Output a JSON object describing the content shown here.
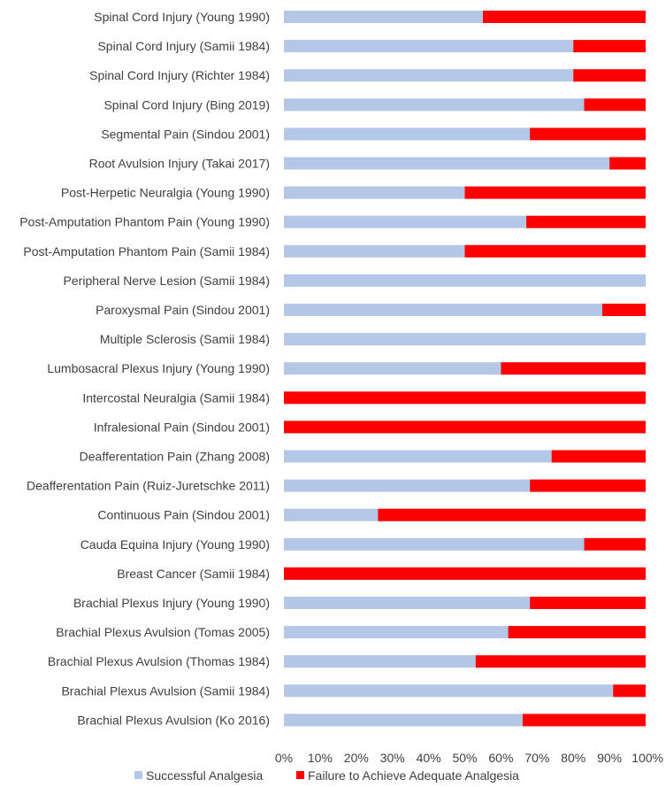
{
  "chart_data": {
    "type": "bar",
    "orientation": "horizontal",
    "stacked": "100%",
    "title": "",
    "xlabel": "",
    "ylabel": "",
    "xlim": [
      0,
      100
    ],
    "x_ticks": [
      "0%",
      "10%",
      "20%",
      "30%",
      "40%",
      "50%",
      "60%",
      "70%",
      "80%",
      "90%",
      "100%"
    ],
    "categories": [
      "Spinal Cord Injury (Young 1990)",
      "Spinal Cord Injury (Samii 1984)",
      "Spinal Cord Injury (Richter 1984)",
      "Spinal Cord Injury (Bing 2019)",
      "Segmental Pain (Sindou 2001)",
      "Root Avulsion Injury (Takai 2017)",
      "Post-Herpetic Neuralgia (Young 1990)",
      "Post-Amputation Phantom Pain (Young 1990)",
      "Post-Amputation Phantom Pain (Samii 1984)",
      "Peripheral Nerve Lesion (Samii 1984)",
      "Paroxysmal Pain (Sindou 2001)",
      "Multiple Sclerosis (Samii 1984)",
      "Lumbosacral Plexus Injury (Young 1990)",
      "Intercostal Neuralgia (Samii 1984)",
      "Infralesional Pain (Sindou 2001)",
      "Deafferentation Pain (Zhang 2008)",
      "Deafferentation Pain (Ruiz-Juretschke 2011)",
      "Continuous Pain (Sindou 2001)",
      "Cauda Equina Injury (Young 1990)",
      "Breast Cancer (Samii 1984)",
      "Brachial Plexus Injury (Young 1990)",
      "Brachial Plexus Avulsion (Tomas 2005)",
      "Brachial Plexus Avulsion (Thomas 1984)",
      "Brachial Plexus Avulsion (Samii 1984)",
      "Brachial Plexus Avulsion (Ko 2016)"
    ],
    "series": [
      {
        "name": "Successful Analgesia",
        "color": "#b4c7e7",
        "values": [
          55,
          80,
          80,
          83,
          68,
          90,
          50,
          67,
          50,
          100,
          88,
          100,
          60,
          0,
          0,
          74,
          68,
          26,
          83,
          0,
          68,
          62,
          53,
          91,
          66
        ]
      },
      {
        "name": "Failure to Achieve Adequate Analgesia",
        "color": "#ff0000",
        "values": [
          45,
          20,
          20,
          17,
          32,
          10,
          50,
          33,
          50,
          0,
          12,
          0,
          40,
          100,
          100,
          26,
          32,
          74,
          17,
          100,
          32,
          38,
          47,
          9,
          34
        ]
      }
    ],
    "legend_position": "bottom"
  }
}
